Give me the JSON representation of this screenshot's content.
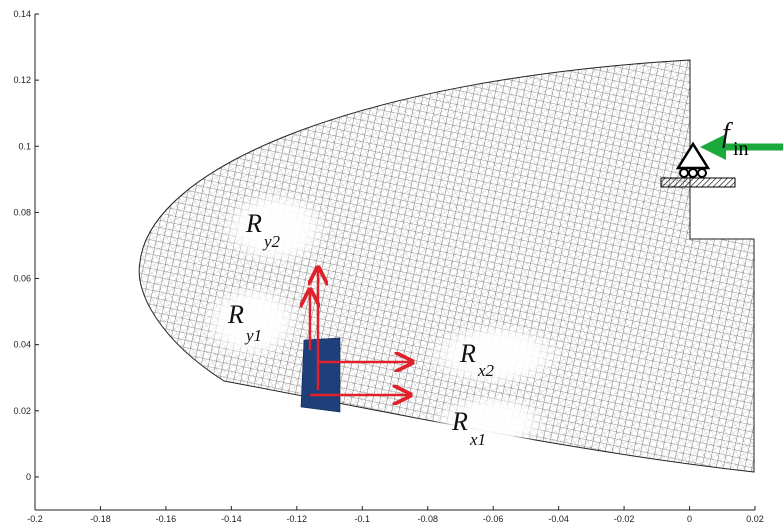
{
  "chart_data": {
    "type": "mesh",
    "xlim": [
      -0.2,
      0.02
    ],
    "xticks": [
      -0.2,
      -0.18,
      -0.16,
      -0.14,
      -0.12,
      -0.1,
      -0.08,
      -0.06,
      -0.04,
      -0.02,
      0,
      0.02
    ],
    "ylim": [
      -0.01,
      0.14
    ],
    "yticks": [
      0,
      0.02,
      0.04,
      0.06,
      0.08,
      0.1,
      0.12,
      0.14
    ],
    "annotations": [
      {
        "main": "R",
        "sub": "y2"
      },
      {
        "main": "R",
        "sub": "y1"
      },
      {
        "main": "R",
        "sub": "x2"
      },
      {
        "main": "R",
        "sub": "x1"
      },
      {
        "main": "f",
        "sub": "in"
      }
    ]
  }
}
